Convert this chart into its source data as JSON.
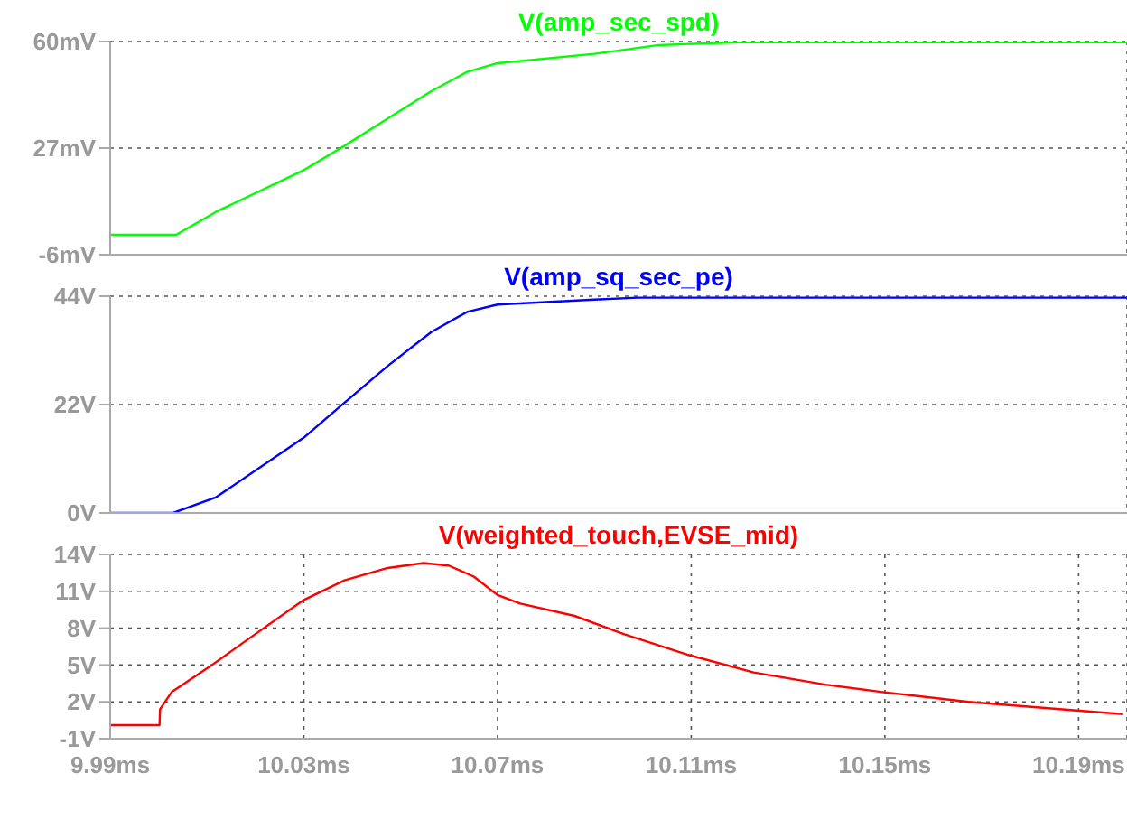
{
  "chart_data": [
    {
      "type": "line",
      "xlim": [
        9.99,
        10.2
      ],
      "xticks": [
        {
          "value": 9.99,
          "label": null
        },
        {
          "value": 10.03,
          "label": null
        },
        {
          "value": 10.07,
          "label": null
        },
        {
          "value": 10.11,
          "label": null
        },
        {
          "value": 10.15,
          "label": null
        },
        {
          "value": 10.19,
          "label": null
        }
      ],
      "ylim": [
        -6,
        60
      ],
      "yticks": [
        {
          "value": -6,
          "label": "-6mV"
        },
        {
          "value": 27,
          "label": "27mV"
        },
        {
          "value": 60,
          "label": "60mV"
        }
      ],
      "tick_labels": "y",
      "grid": true,
      "legend": "top",
      "marker": "none",
      "series": [
        {
          "name": "V(amp_sec_spd)",
          "color": "#00ff00",
          "x": [
            9.99,
            10.0037,
            10.0119,
            10.03,
            10.0385,
            10.0474,
            10.0563,
            10.0637,
            10.07,
            10.09,
            10.1033,
            10.1196,
            10.2
          ],
          "values": [
            0.2,
            0.2,
            7.3,
            20.2,
            27.8,
            36.2,
            44.6,
            50.6,
            53.3,
            56.2,
            58.9,
            59.8,
            59.8
          ]
        }
      ]
    },
    {
      "type": "line",
      "xlim": [
        9.99,
        10.2
      ],
      "xticks": [
        {
          "value": 9.99,
          "label": null
        },
        {
          "value": 10.03,
          "label": null
        },
        {
          "value": 10.07,
          "label": null
        },
        {
          "value": 10.11,
          "label": null
        },
        {
          "value": 10.15,
          "label": null
        },
        {
          "value": 10.19,
          "label": null
        }
      ],
      "ylim": [
        0,
        44
      ],
      "yticks": [
        {
          "value": 0,
          "label": "0V"
        },
        {
          "value": 22,
          "label": "22V"
        },
        {
          "value": 44,
          "label": "44V"
        }
      ],
      "tick_labels": "y",
      "grid": true,
      "legend": "top",
      "marker": "none",
      "series": [
        {
          "name": "V(amp_sq_sec_pe)",
          "color": "#0000ff",
          "x": [
            9.99,
            10.003,
            10.0119,
            10.03,
            10.0378,
            10.0474,
            10.0563,
            10.0637,
            10.07,
            10.09,
            10.0989,
            10.2
          ],
          "values": [
            0,
            0,
            3.2,
            15.3,
            21.9,
            29.9,
            36.7,
            40.8,
            42.3,
            43.3,
            43.7,
            43.7
          ]
        }
      ]
    },
    {
      "type": "line",
      "xlim": [
        9.99,
        10.2
      ],
      "xticks": [
        {
          "value": 9.99,
          "label": "9.99ms"
        },
        {
          "value": 10.03,
          "label": "10.03ms"
        },
        {
          "value": 10.07,
          "label": "10.07ms"
        },
        {
          "value": 10.11,
          "label": "10.11ms"
        },
        {
          "value": 10.15,
          "label": "10.15ms"
        },
        {
          "value": 10.19,
          "label": "10.19ms"
        }
      ],
      "ylim": [
        -1,
        14
      ],
      "yticks": [
        {
          "value": -1,
          "label": "-1V"
        },
        {
          "value": 2,
          "label": "2V"
        },
        {
          "value": 5,
          "label": "5V"
        },
        {
          "value": 8,
          "label": "8V"
        },
        {
          "value": 11,
          "label": "11V"
        },
        {
          "value": 14,
          "label": "14V"
        }
      ],
      "grid": true,
      "legend": "top",
      "marker": "none",
      "series": [
        {
          "name": "V(weighted_touch,EVSE_mid)",
          "color": "#ff0000",
          "x": [
            9.99,
            10.0002,
            10.0003,
            10.0027,
            10.0103,
            10.0192,
            10.03,
            10.0384,
            10.0473,
            10.0547,
            10.0599,
            10.0651,
            10.07,
            10.0747,
            10.0859,
            10.0962,
            10.1096,
            10.1229,
            10.1377,
            10.1495,
            10.1673,
            10.1896,
            10.1992
          ],
          "values": [
            0.1,
            0.1,
            1.4,
            2.8,
            4.8,
            7.3,
            10.3,
            11.9,
            12.9,
            13.3,
            13.1,
            12.2,
            10.7,
            10.0,
            9.0,
            7.5,
            5.8,
            4.4,
            3.4,
            2.8,
            2.0,
            1.3,
            1.0
          ]
        }
      ]
    }
  ]
}
